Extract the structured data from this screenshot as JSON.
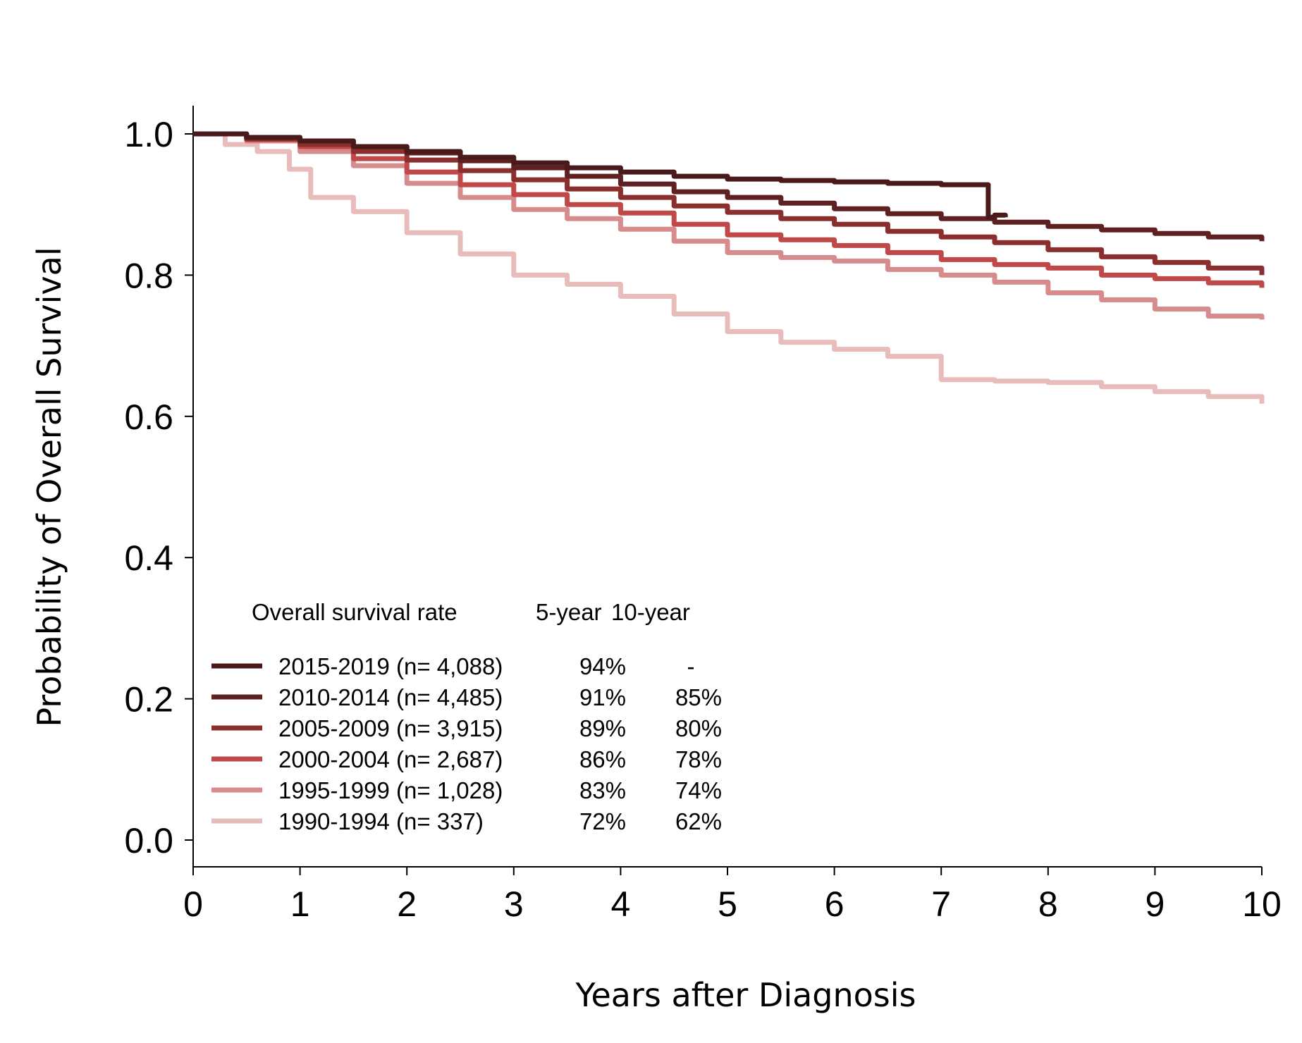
{
  "chart_data": {
    "type": "line",
    "xlabel": "Years after Diagnosis",
    "ylabel": "Probability of Overall Survival",
    "xlim": [
      0,
      10
    ],
    "ylim": [
      0,
      1.0
    ],
    "x_ticks": [
      "0",
      "1",
      "2",
      "3",
      "4",
      "5",
      "6",
      "7",
      "8",
      "9",
      "10"
    ],
    "y_ticks": [
      "0.0",
      "0.2",
      "0.4",
      "0.6",
      "0.8",
      "1.0"
    ],
    "grid": false,
    "legend": {
      "position": "bottom-left",
      "header": "Overall survival rate",
      "col5_header": "5-year",
      "col10_header": "10-year"
    },
    "series": [
      {
        "name": "2015-2019 (n= 4,088)",
        "five_year": "94%",
        "ten_year": "-",
        "color": "#4a1a1a",
        "x": [
          0,
          0.5,
          1,
          1.5,
          2,
          2.5,
          3,
          3.5,
          4,
          4.5,
          5,
          5.5,
          6,
          6.5,
          7,
          7.44,
          7.44,
          7.5,
          7.6
        ],
        "y": [
          1.0,
          0.995,
          0.99,
          0.982,
          0.975,
          0.967,
          0.959,
          0.952,
          0.946,
          0.94,
          0.936,
          0.934,
          0.932,
          0.93,
          0.928,
          0.927,
          0.882,
          0.885,
          0.882
        ]
      },
      {
        "name": "2010-2014 (n= 4,485)",
        "five_year": "91%",
        "ten_year": "85%",
        "color": "#5e2020",
        "x": [
          0,
          0.5,
          1,
          1.5,
          2,
          2.5,
          3,
          3.5,
          4,
          4.5,
          5,
          5.5,
          6,
          6.5,
          7,
          7.5,
          8,
          8.5,
          9,
          9.5,
          10
        ],
        "y": [
          1.0,
          0.995,
          0.99,
          0.982,
          0.973,
          0.962,
          0.952,
          0.94,
          0.929,
          0.918,
          0.91,
          0.902,
          0.894,
          0.887,
          0.88,
          0.875,
          0.869,
          0.864,
          0.859,
          0.854,
          0.848
        ]
      },
      {
        "name": "2005-2009 (n= 3,915)",
        "five_year": "89%",
        "ten_year": "80%",
        "color": "#8a2e2e",
        "x": [
          0,
          0.5,
          1,
          1.5,
          2,
          2.5,
          3,
          3.5,
          4,
          4.5,
          5,
          5.5,
          6,
          6.5,
          7,
          7.5,
          8,
          8.5,
          9,
          9.5,
          10
        ],
        "y": [
          1.0,
          0.993,
          0.985,
          0.975,
          0.963,
          0.948,
          0.935,
          0.922,
          0.91,
          0.898,
          0.889,
          0.88,
          0.872,
          0.862,
          0.854,
          0.846,
          0.836,
          0.826,
          0.818,
          0.81,
          0.8
        ]
      },
      {
        "name": "2000-2004 (n= 2,687)",
        "five_year": "86%",
        "ten_year": "78%",
        "color": "#c04848",
        "x": [
          0,
          0.5,
          1,
          1.5,
          2,
          2.5,
          3,
          3.5,
          4,
          4.5,
          5,
          5.5,
          6,
          6.5,
          7,
          7.5,
          8,
          8.5,
          9,
          9.5,
          10
        ],
        "y": [
          1.0,
          0.992,
          0.982,
          0.965,
          0.946,
          0.928,
          0.914,
          0.9,
          0.888,
          0.872,
          0.857,
          0.85,
          0.842,
          0.832,
          0.822,
          0.815,
          0.81,
          0.8,
          0.795,
          0.789,
          0.782
        ]
      },
      {
        "name": "1995-1999 (n= 1,028)",
        "five_year": "83%",
        "ten_year": "74%",
        "color": "#d68c8c",
        "x": [
          0,
          0.5,
          1,
          1.5,
          2,
          2.5,
          3,
          3.5,
          4,
          4.5,
          5,
          5.5,
          6,
          6.5,
          7,
          7.5,
          8,
          8.5,
          9,
          9.5,
          10
        ],
        "y": [
          1.0,
          0.99,
          0.975,
          0.955,
          0.93,
          0.91,
          0.893,
          0.88,
          0.865,
          0.848,
          0.832,
          0.825,
          0.82,
          0.808,
          0.8,
          0.79,
          0.775,
          0.765,
          0.752,
          0.742,
          0.737
        ]
      },
      {
        "name": "1990-1994 (n= 337)",
        "five_year": "72%",
        "ten_year": "62%",
        "color": "#e9bcbc",
        "x": [
          0,
          0.3,
          0.6,
          0.9,
          1.1,
          1.5,
          2.0,
          2.5,
          3.0,
          3.5,
          4.0,
          4.5,
          5.0,
          5.5,
          6.0,
          6.5,
          7.0,
          7.5,
          8.0,
          8.5,
          9.0,
          9.5,
          10
        ],
        "y": [
          1.0,
          0.985,
          0.975,
          0.95,
          0.91,
          0.89,
          0.86,
          0.83,
          0.8,
          0.787,
          0.77,
          0.745,
          0.72,
          0.705,
          0.695,
          0.685,
          0.652,
          0.65,
          0.648,
          0.642,
          0.635,
          0.628,
          0.618
        ]
      }
    ]
  }
}
